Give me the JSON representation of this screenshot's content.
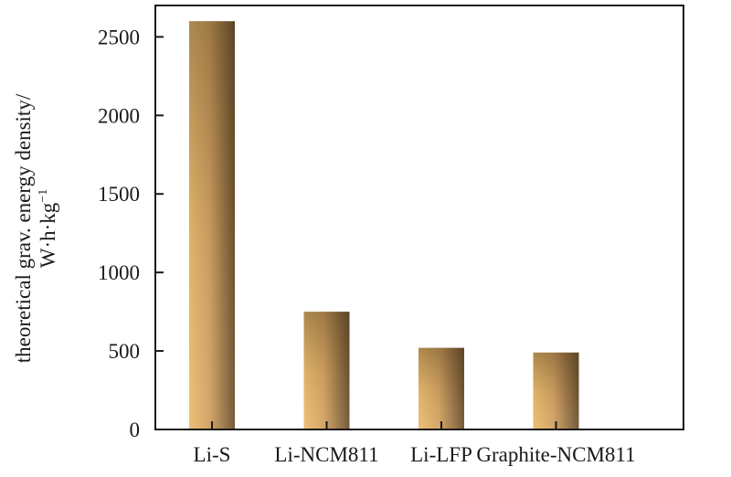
{
  "chart_data": {
    "type": "bar",
    "title": "",
    "xlabel": "",
    "ylabel_line1": "theoretical grav. energy density/",
    "ylabel_line2": "W·h·kg",
    "ylabel_sup": "−1",
    "categories": [
      "Li-S",
      "Li-NCM811",
      "Li-LFP",
      "Graphite-NCM811"
    ],
    "values": [
      2600,
      750,
      520,
      490
    ],
    "ylim": [
      0,
      2700
    ],
    "yticks": [
      0,
      500,
      1000,
      1500,
      2000,
      2500
    ],
    "grid": false,
    "legend": "none",
    "colors": {
      "bar_light": "#ebbd70",
      "bar_mid": "#c99858",
      "bar_dark": "#6e5331",
      "axis": "#1a1a1a"
    }
  }
}
